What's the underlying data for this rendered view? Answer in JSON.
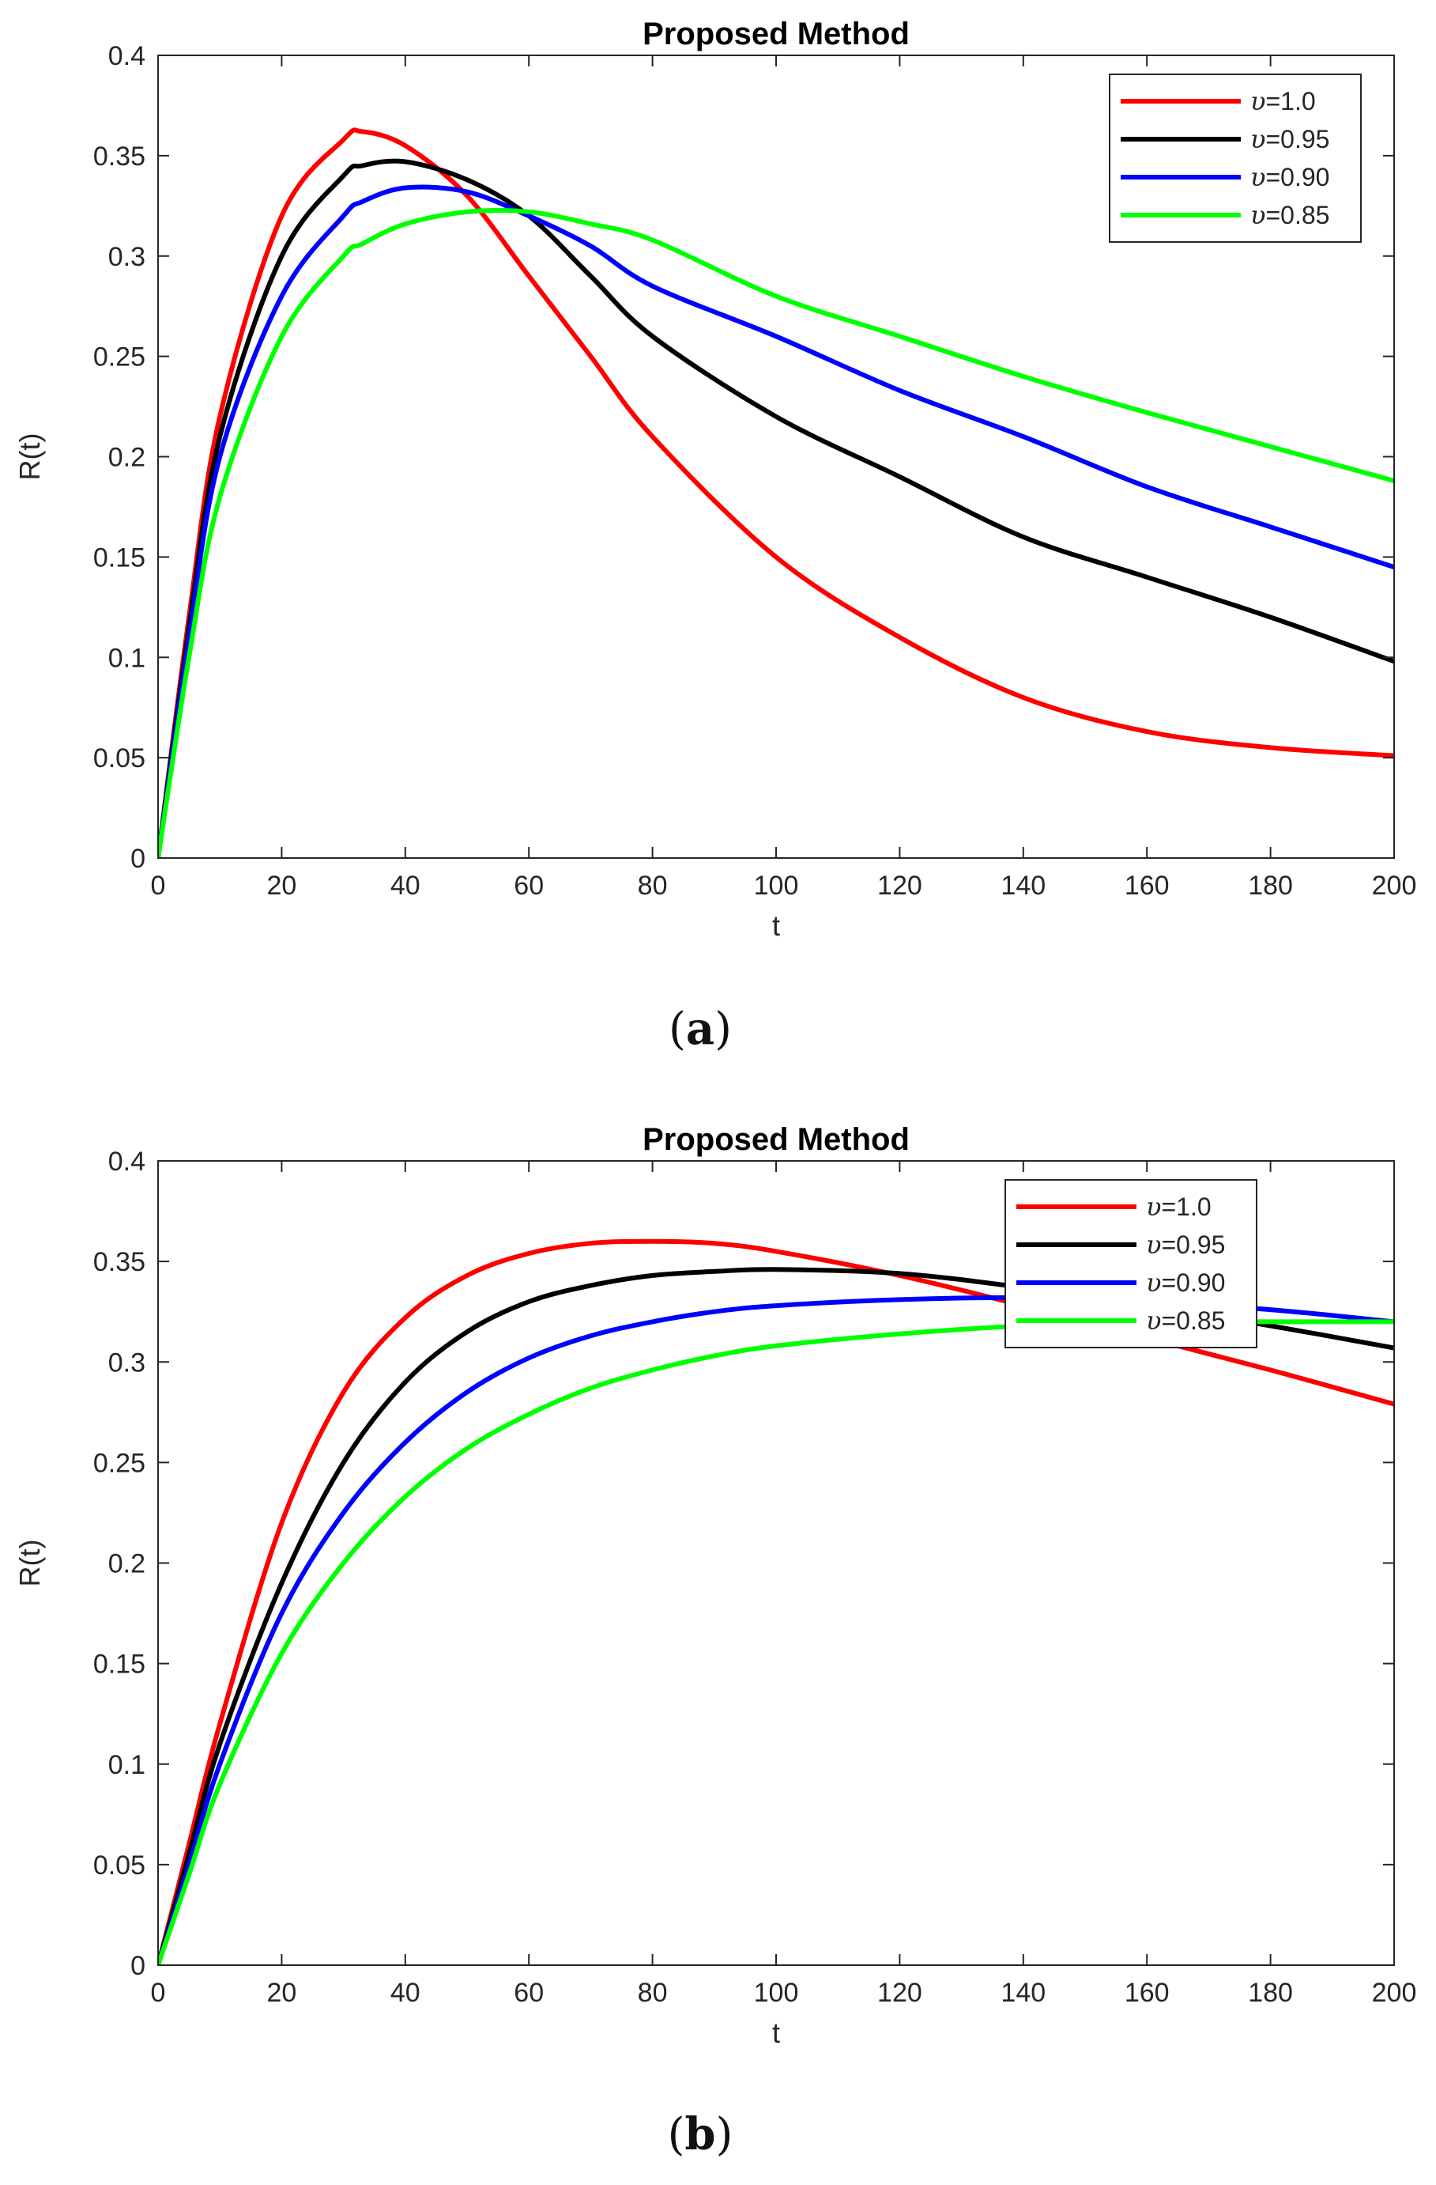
{
  "chart_data": [
    {
      "type": "line",
      "title": "Proposed Method",
      "xlabel": "t",
      "ylabel": "R(t)",
      "xlim": [
        0,
        200
      ],
      "ylim": [
        0,
        0.4
      ],
      "xticks": [
        "0",
        "20",
        "40",
        "60",
        "80",
        "100",
        "120",
        "140",
        "160",
        "180",
        "200"
      ],
      "yticks": [
        "0",
        "0.05",
        "0.1",
        "0.15",
        "0.2",
        "0.25",
        "0.3",
        "0.35",
        "0.4"
      ],
      "caption": "a",
      "legend": {
        "location": "top-right"
      },
      "x": [
        0,
        5,
        10,
        20,
        30,
        33,
        40,
        50,
        60,
        70,
        80,
        100,
        120,
        140,
        160,
        180,
        200
      ],
      "series": [
        {
          "name": "υ=1.0",
          "symbol": "υ",
          "value_label": "=1.0",
          "color": "#ff0000",
          "values": [
            0,
            0.12,
            0.22,
            0.32,
            0.358,
            0.362,
            0.355,
            0.33,
            0.29,
            0.25,
            0.21,
            0.15,
            0.11,
            0.08,
            0.063,
            0.055,
            0.051
          ]
        },
        {
          "name": "υ=0.95",
          "symbol": "υ",
          "value_label": "=0.95",
          "color": "#000000",
          "values": [
            0,
            0.115,
            0.21,
            0.3,
            0.34,
            0.345,
            0.347,
            0.338,
            0.32,
            0.29,
            0.26,
            0.22,
            0.19,
            0.16,
            0.14,
            0.12,
            0.098
          ]
        },
        {
          "name": "υ=0.90",
          "symbol": "υ",
          "value_label": "=0.90",
          "color": "#0000ff",
          "values": [
            0,
            0.11,
            0.2,
            0.28,
            0.32,
            0.327,
            0.334,
            0.332,
            0.32,
            0.305,
            0.285,
            0.26,
            0.233,
            0.21,
            0.185,
            0.165,
            0.145
          ]
        },
        {
          "name": "υ=0.85",
          "symbol": "υ",
          "value_label": "=0.85",
          "color": "#00ff00",
          "values": [
            0,
            0.1,
            0.18,
            0.26,
            0.3,
            0.306,
            0.316,
            0.322,
            0.322,
            0.316,
            0.308,
            0.28,
            0.26,
            0.24,
            0.222,
            0.205,
            0.188
          ]
        }
      ]
    },
    {
      "type": "line",
      "title": "Proposed Method",
      "xlabel": "t",
      "ylabel": "R(t)",
      "xlim": [
        0,
        200
      ],
      "ylim": [
        0,
        0.4
      ],
      "xticks": [
        "0",
        "20",
        "40",
        "60",
        "80",
        "100",
        "120",
        "140",
        "160",
        "180",
        "200"
      ],
      "yticks": [
        "0",
        "0.05",
        "0.1",
        "0.15",
        "0.2",
        "0.25",
        "0.3",
        "0.35",
        "0.4"
      ],
      "caption": "b",
      "legend": {
        "location": "top-right"
      },
      "x": [
        0,
        5,
        10,
        20,
        30,
        40,
        50,
        60,
        70,
        80,
        90,
        100,
        120,
        140,
        160,
        180,
        200
      ],
      "series": [
        {
          "name": "υ=1.0",
          "symbol": "υ",
          "value_label": "=1.0",
          "color": "#ff0000",
          "values": [
            0,
            0.06,
            0.12,
            0.22,
            0.285,
            0.322,
            0.343,
            0.354,
            0.359,
            0.36,
            0.359,
            0.355,
            0.343,
            0.328,
            0.312,
            0.296,
            0.279
          ]
        },
        {
          "name": "υ=0.95",
          "symbol": "υ",
          "value_label": "=0.95",
          "color": "#000000",
          "values": [
            0,
            0.055,
            0.11,
            0.19,
            0.25,
            0.29,
            0.315,
            0.33,
            0.338,
            0.343,
            0.345,
            0.346,
            0.344,
            0.337,
            0.328,
            0.318,
            0.307
          ]
        },
        {
          "name": "υ=0.90",
          "symbol": "υ",
          "value_label": "=0.90",
          "color": "#0000ff",
          "values": [
            0,
            0.05,
            0.1,
            0.175,
            0.225,
            0.26,
            0.285,
            0.302,
            0.313,
            0.32,
            0.325,
            0.328,
            0.331,
            0.332,
            0.33,
            0.326,
            0.32
          ]
        },
        {
          "name": "υ=0.85",
          "symbol": "υ",
          "value_label": "=0.85",
          "color": "#00ff00",
          "values": [
            0,
            0.045,
            0.09,
            0.155,
            0.2,
            0.233,
            0.257,
            0.274,
            0.287,
            0.296,
            0.303,
            0.308,
            0.314,
            0.318,
            0.32,
            0.32,
            0.32
          ]
        }
      ]
    }
  ]
}
